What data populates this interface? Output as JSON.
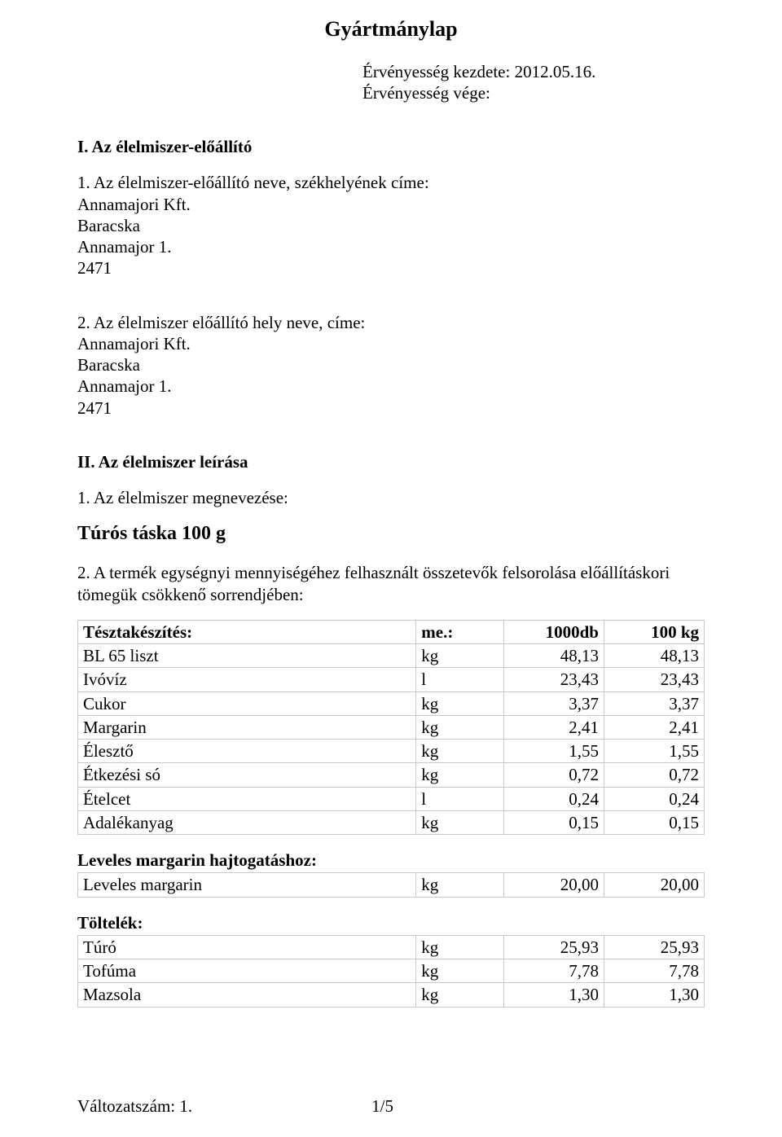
{
  "title": "Gyártmánylap",
  "validity": {
    "start_label": "Érvényesség kezdete: ",
    "start_value": "2012.05.16.",
    "end_label": "Érvényesség vége:"
  },
  "section1": {
    "heading": "I. Az élelmiszer-előállító",
    "item1_label": "1. Az élelmiszer-előállító neve, székhelyének címe:",
    "company": "Annamajori Kft.",
    "city": "Baracska",
    "addr": "Annamajor 1.",
    "zip": "2471",
    "item2_label": "2. Az élelmiszer előállító hely neve, címe:"
  },
  "section2": {
    "heading": "II. Az élelmiszer leírása",
    "item1_label": "1. Az élelmiszer megnevezése:",
    "product_name": "Túrós táska 100 g",
    "item2_label": "2. A termék egységnyi mennyiségéhez felhasznált összetevők felsorolása előállításkori tömegük csökkenő sorrendjében:"
  },
  "tables": {
    "teszta": {
      "header": [
        "Tésztakészítés:",
        "me.:",
        "1000db",
        "100 kg"
      ],
      "rows": [
        [
          "BL 65 liszt",
          "kg",
          "48,13",
          "48,13"
        ],
        [
          "Ivóvíz",
          "l",
          "23,43",
          "23,43"
        ],
        [
          "Cukor",
          "kg",
          "3,37",
          "3,37"
        ],
        [
          "Margarin",
          "kg",
          "2,41",
          "2,41"
        ],
        [
          "Élesztő",
          "kg",
          "1,55",
          "1,55"
        ],
        [
          "Étkezési só",
          "kg",
          "0,72",
          "0,72"
        ],
        [
          "Ételcet",
          "l",
          "0,24",
          "0,24"
        ],
        [
          "Adalékanyag",
          "kg",
          "0,15",
          "0,15"
        ]
      ]
    },
    "leveles": {
      "title": "Leveles margarin hajtogatáshoz:",
      "rows": [
        [
          "Leveles margarin",
          "kg",
          "20,00",
          "20,00"
        ]
      ]
    },
    "toltelek": {
      "title": "Töltelék:",
      "rows": [
        [
          "Túró",
          "kg",
          "25,93",
          "25,93"
        ],
        [
          "Tofúma",
          "kg",
          "7,78",
          "7,78"
        ],
        [
          "Mazsola",
          "kg",
          "1,30",
          "1,30"
        ]
      ]
    }
  },
  "footer": {
    "version_label": "Változatszám: 1.",
    "page": "1/5"
  }
}
